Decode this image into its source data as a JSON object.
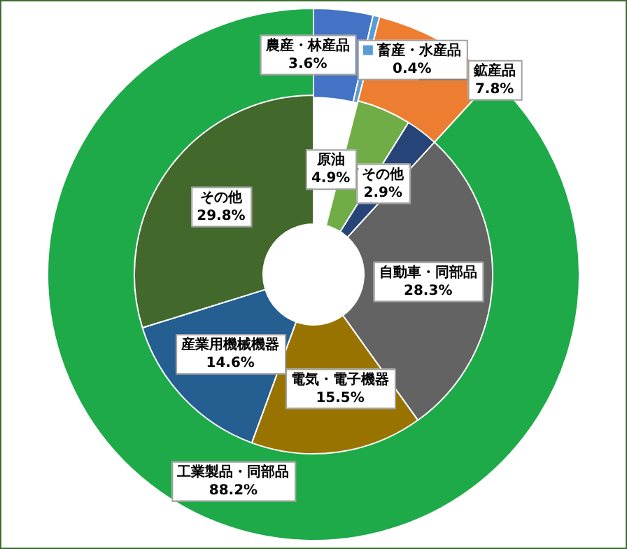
{
  "chart_data": [
    {
      "type": "donut",
      "categories": [
        "農産・林産品",
        "畜産・水産品",
        "鉱産品",
        "工業製品・同部品"
      ],
      "values": [
        3.6,
        0.4,
        7.8,
        88.2
      ],
      "colors": [
        "#4472c4",
        "#5b9bd5",
        "#ed7d31",
        "#1faa4a"
      ],
      "value_labels": [
        "3.6%",
        "0.4%",
        "7.8%",
        "88.2%"
      ]
    },
    {
      "type": "donut",
      "categories": [
        "原油",
        "その他",
        "自動車・同部品",
        "電気・電子機器",
        "産業用機械機器",
        "その他"
      ],
      "values": [
        4.9,
        2.9,
        28.3,
        15.5,
        14.6,
        29.8
      ],
      "colors": [
        "#70ad47",
        "#264478",
        "#636363",
        "#997300",
        "#255e91",
        "#43682b"
      ],
      "value_labels": [
        "4.9%",
        "2.9%",
        "28.3%",
        "15.5%",
        "14.6%",
        "29.8%"
      ]
    }
  ]
}
